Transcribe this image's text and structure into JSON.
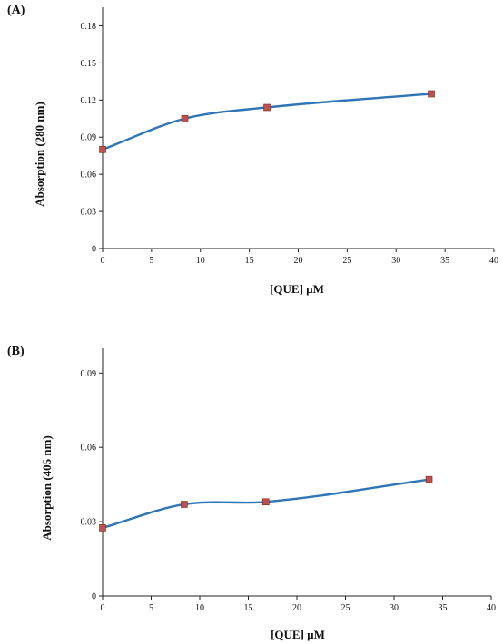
{
  "chart_data": [
    {
      "type": "line",
      "panel_label": "(A)",
      "xlabel": "[QUE] µM",
      "ylabel": "Absorption (280 nm)",
      "xlim": [
        0,
        40
      ],
      "ylim": [
        0,
        0.195
      ],
      "xticks": [
        0,
        5,
        10,
        15,
        20,
        25,
        30,
        35,
        40
      ],
      "yticks": [
        0,
        0.03,
        0.06,
        0.09,
        0.12,
        0.15,
        0.18
      ],
      "ytick_labels": [
        "0",
        "0.03",
        "0.06",
        "0.09",
        "0.12",
        "0.15",
        "0.18"
      ],
      "series": [
        {
          "x": [
            0,
            8.4,
            16.8,
            33.6
          ],
          "y": [
            0.08,
            0.105,
            0.114,
            0.125
          ]
        }
      ],
      "line_color": "#2e75b6",
      "marker_color": "#c0504d",
      "grid": false
    },
    {
      "type": "line",
      "panel_label": "(B)",
      "xlabel": "[QUE] µM",
      "ylabel": "Absorption (405 nm)",
      "xlim": [
        0,
        40
      ],
      "ylim": [
        0,
        0.1
      ],
      "xticks": [
        0,
        5,
        10,
        15,
        20,
        25,
        30,
        35,
        40
      ],
      "yticks": [
        0,
        0.03,
        0.06,
        0.09
      ],
      "ytick_labels": [
        "0",
        "0.03",
        "0.06",
        "0.09"
      ],
      "series": [
        {
          "x": [
            0,
            8.4,
            16.8,
            33.6
          ],
          "y": [
            0.0275,
            0.037,
            0.038,
            0.047
          ]
        }
      ],
      "line_color": "#2e75b6",
      "marker_color": "#c0504d",
      "grid": false
    }
  ]
}
